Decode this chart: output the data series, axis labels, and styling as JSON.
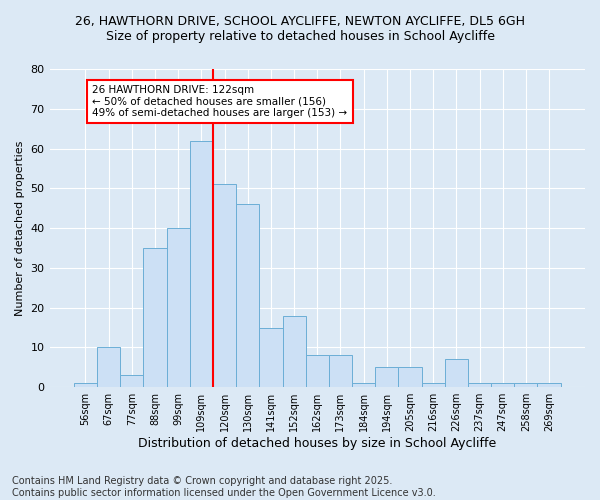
{
  "title_line1": "26, HAWTHORN DRIVE, SCHOOL AYCLIFFE, NEWTON AYCLIFFE, DL5 6GH",
  "title_line2": "Size of property relative to detached houses in School Aycliffe",
  "xlabel": "Distribution of detached houses by size in School Aycliffe",
  "ylabel": "Number of detached properties",
  "bins": [
    "56sqm",
    "67sqm",
    "77sqm",
    "88sqm",
    "99sqm",
    "109sqm",
    "120sqm",
    "130sqm",
    "141sqm",
    "152sqm",
    "162sqm",
    "173sqm",
    "184sqm",
    "194sqm",
    "205sqm",
    "216sqm",
    "226sqm",
    "237sqm",
    "247sqm",
    "258sqm",
    "269sqm"
  ],
  "values": [
    1,
    10,
    3,
    35,
    40,
    62,
    51,
    46,
    15,
    18,
    8,
    8,
    1,
    5,
    5,
    1,
    7,
    1,
    1,
    1,
    1
  ],
  "bar_color": "#cce0f5",
  "bar_edge_color": "#6baed6",
  "vline_bin_index": 6,
  "vline_color": "red",
  "annotation_line1": "26 HAWTHORN DRIVE: 122sqm",
  "annotation_line2": "← 50% of detached houses are smaller (156)",
  "annotation_line3": "49% of semi-detached houses are larger (153) →",
  "annotation_box_facecolor": "white",
  "annotation_box_edgecolor": "red",
  "annotation_fontsize": 7.5,
  "ylim": [
    0,
    80
  ],
  "yticks": [
    0,
    10,
    20,
    30,
    40,
    50,
    60,
    70,
    80
  ],
  "background_color": "#dce9f5",
  "grid_color": "white",
  "title_fontsize": 9,
  "xlabel_fontsize": 9,
  "ylabel_fontsize": 8,
  "footer_line1": "Contains HM Land Registry data © Crown copyright and database right 2025.",
  "footer_line2": "Contains public sector information licensed under the Open Government Licence v3.0.",
  "footer_fontsize": 7
}
